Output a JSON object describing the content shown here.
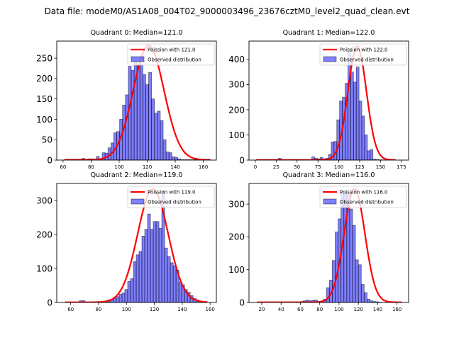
{
  "figure": {
    "suptitle": "Data file: modeM0/AS1A08_004T02_9000003496_23676cztM0_level2_quad_clean.evt"
  },
  "chart_data": [
    {
      "type": "bar",
      "title": "Quadrant 0: Median=121.0",
      "xlabel": "",
      "ylabel": "",
      "xlim": [
        55.5,
        169.3
      ],
      "ylim": [
        0,
        292
      ],
      "xticks": [
        60,
        80,
        100,
        120,
        140,
        160
      ],
      "yticks": [
        0,
        50,
        100,
        150,
        200,
        250
      ],
      "legend": {
        "position": "top-right",
        "entries": [
          "Poission with 121.0",
          "Observed distribution"
        ]
      },
      "poisson_mean": 121.0,
      "poisson_peak": 281,
      "curve_range": [
        61,
        165
      ],
      "bin_width": 2.07,
      "bins_start": 61,
      "counts": [
        1,
        1,
        1,
        1,
        1,
        2,
        4,
        1,
        3,
        3,
        1,
        9,
        3,
        18,
        17,
        30,
        42,
        67,
        70,
        100,
        135,
        160,
        230,
        220,
        240,
        235,
        235,
        210,
        185,
        215,
        150,
        115,
        120,
        97,
        50,
        20,
        18,
        8,
        7,
        3,
        1,
        1,
        1,
        1,
        1,
        1,
        0,
        0,
        0,
        0
      ]
    },
    {
      "type": "bar",
      "title": "Quadrant 1: Median=122.0",
      "xlabel": "",
      "ylabel": "",
      "xlim": [
        -7.6,
        183.6
      ],
      "ylim": [
        0,
        473
      ],
      "xticks": [
        0,
        25,
        50,
        75,
        100,
        125,
        150,
        175
      ],
      "yticks": [
        0,
        100,
        200,
        300,
        400
      ],
      "legend": {
        "position": "top-right",
        "entries": [
          "Poission with 122.0",
          "Observed distribution"
        ]
      },
      "poisson_mean": 122.0,
      "poisson_peak": 452,
      "curve_range": [
        1,
        168
      ],
      "bin_width": 3.33,
      "bins_start": 1,
      "counts": [
        0,
        0,
        0,
        0,
        0,
        0,
        2,
        2,
        7,
        0,
        0,
        0,
        0,
        0,
        0,
        0,
        0,
        0,
        0,
        0,
        13,
        7,
        5,
        10,
        5,
        7,
        22,
        72,
        74,
        160,
        235,
        250,
        305,
        440,
        350,
        310,
        370,
        235,
        175,
        100,
        37,
        42,
        3,
        2,
        1,
        1,
        0,
        0,
        0,
        0
      ]
    },
    {
      "type": "bar",
      "title": "Quadrant 2: Median=119.0",
      "xlabel": "",
      "ylabel": "",
      "xlim": [
        50,
        164.5
      ],
      "ylim": [
        0,
        350
      ],
      "xticks": [
        60,
        80,
        100,
        120,
        140,
        160
      ],
      "yticks": [
        0,
        100,
        200,
        300
      ],
      "legend": {
        "position": "top-right",
        "entries": [
          "Poission with 119.0",
          "Observed distribution"
        ]
      },
      "poisson_mean": 119.0,
      "poisson_peak": 333,
      "curve_range": [
        56,
        158
      ],
      "bin_width": 2.04,
      "bins_start": 56,
      "counts": [
        0,
        0,
        0,
        0,
        0,
        5,
        5,
        0,
        0,
        0,
        0,
        0,
        0,
        0,
        1,
        4,
        8,
        12,
        17,
        24,
        28,
        38,
        62,
        70,
        120,
        140,
        150,
        195,
        215,
        260,
        215,
        238,
        238,
        218,
        330,
        160,
        135,
        117,
        108,
        95,
        60,
        52,
        38,
        30,
        20,
        12,
        8,
        4,
        2,
        1
      ]
    },
    {
      "type": "bar",
      "title": "Quadrant 3: Median=116.0",
      "xlabel": "",
      "ylabel": "",
      "xlim": [
        6.8,
        172
      ],
      "ylim": [
        0,
        363
      ],
      "xticks": [
        20,
        40,
        60,
        80,
        100,
        120,
        140,
        160
      ],
      "yticks": [
        0,
        100,
        200,
        300
      ],
      "legend": {
        "position": "top-right",
        "entries": [
          "Poission with 116.0",
          "Observed distribution"
        ]
      },
      "poisson_mean": 116.0,
      "poisson_peak": 346,
      "curve_range": [
        15,
        165
      ],
      "bin_width": 3.0,
      "bins_start": 15,
      "counts": [
        0,
        0,
        0,
        0,
        0,
        0,
        0,
        0,
        0,
        0,
        0,
        0,
        2,
        2,
        0,
        3,
        5,
        7,
        5,
        7,
        7,
        0,
        5,
        10,
        45,
        68,
        128,
        215,
        255,
        335,
        335,
        330,
        285,
        235,
        130,
        115,
        55,
        30,
        10,
        5,
        3,
        2,
        1,
        0,
        0,
        0,
        0,
        0,
        0,
        0
      ]
    }
  ]
}
